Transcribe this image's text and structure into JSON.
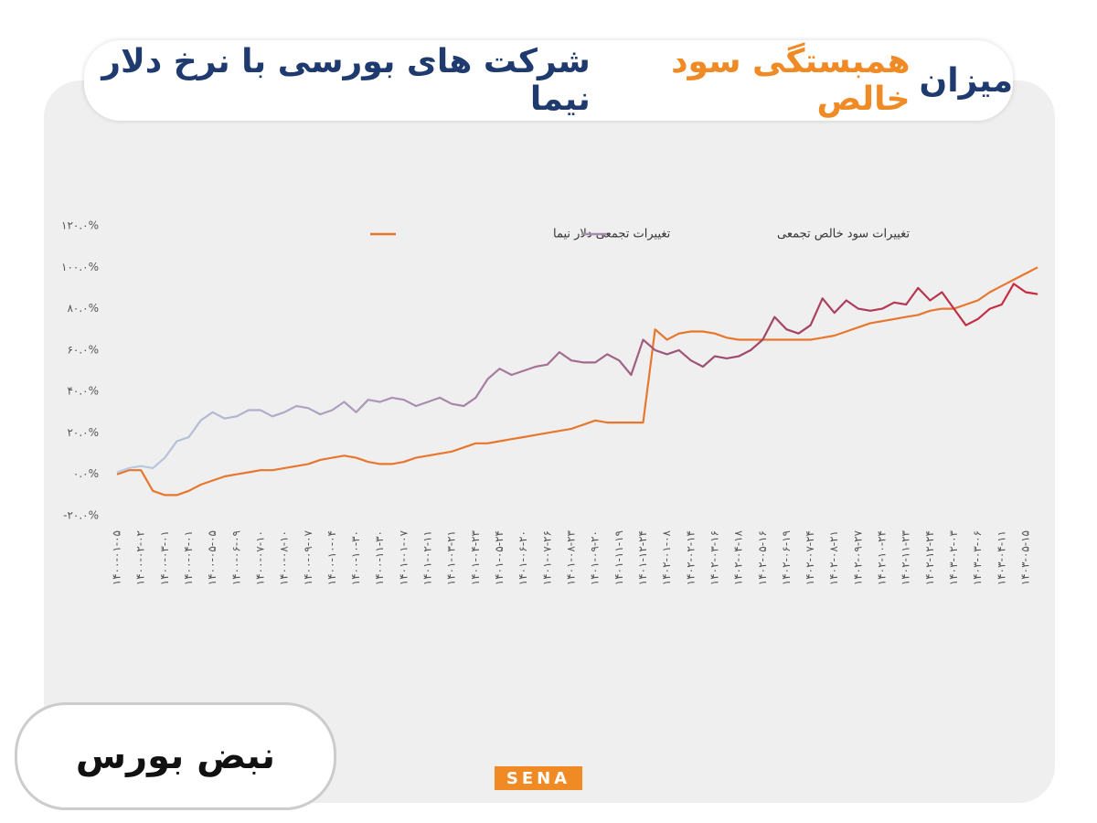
{
  "header": {
    "title_parts": [
      "میزان",
      "همبستگی سود خالص",
      "شرکت های بورسی با نرخ دلار نیما"
    ]
  },
  "chart_data": {
    "type": "line",
    "categories": [
      "۱۴۰۰-۰۱-۰۵",
      null,
      "۱۴۰۰-۰۲-۰۲",
      null,
      "۱۴۰۰-۰۳-۰۱",
      null,
      "۱۴۰۰-۰۴-۰۱",
      null,
      "۱۴۰۰-۰۵-۰۵",
      null,
      "۱۴۰۰-۰۶-۰۹",
      null,
      "۱۴۰۰-۰۷-۱۰",
      null,
      "۱۴۰۰-۰۸-۱۰",
      null,
      "۱۴۰۰-۰۹-۰۷",
      null,
      "۱۴۰۰-۱۰-۰۴",
      null,
      "۱۴۰۰-۱۰-۳۰",
      null,
      "۱۴۰۰-۱۱-۳۰",
      null,
      "۱۴۰۱-۰۱-۰۷",
      null,
      "۱۴۰۱-۰۲-۱۱",
      null,
      "۱۴۰۱-۰۳-۲۱",
      null,
      "۱۴۰۱-۰۴-۲۳",
      null,
      "۱۴۰۱-۰۵-۲۴",
      null,
      "۱۴۰۱-۰۶-۲۰",
      null,
      "۱۴۰۱-۰۷-۲۶",
      null,
      "۱۴۰۱-۰۸-۲۳",
      null,
      "۱۴۰۱-۰۹-۲۰",
      null,
      "۱۴۰۱-۱۱-۱۹",
      null,
      "۱۴۰۱-۱۲-۲۴",
      null,
      "۱۴۰۲-۰۱-۰۸",
      null,
      "۱۴۰۲-۰۲-۱۴",
      null,
      "۱۴۰۲-۰۳-۱۶",
      null,
      "۱۴۰۲-۰۴-۱۸",
      null,
      "۱۴۰۲-۰۵-۱۶",
      null,
      "۱۴۰۲-۰۶-۱۹",
      null,
      "۱۴۰۲-۰۷-۲۴",
      null,
      "۱۴۰۲-۰۸-۲۱",
      null,
      "۱۴۰۲-۰۹-۲۷",
      null,
      "۱۴۰۲-۱۰-۲۴",
      null,
      "۱۴۰۲-۱۱-۲۳",
      null,
      "۱۴۰۲-۱۲-۲۴",
      null,
      "۱۴۰۳-۰۲-۰۳",
      null,
      "۱۴۰۳-۰۳-۰۶",
      null,
      "۱۴۰۳-۰۴-۱۱",
      null,
      "۱۴۰۳-۰۵-۱۵",
      null
    ],
    "series": [
      {
        "name": "تغییرات تجمعی دلار نیما",
        "color": "#e8772e",
        "values": [
          0,
          2,
          2,
          -8,
          -10,
          -10,
          -8,
          -5,
          -3,
          -1,
          0,
          1,
          2,
          2,
          3,
          4,
          5,
          7,
          8,
          9,
          8,
          6,
          5,
          5,
          6,
          8,
          9,
          10,
          11,
          13,
          15,
          15,
          16,
          17,
          18,
          19,
          20,
          21,
          22,
          24,
          26,
          25,
          25,
          25,
          25,
          70,
          65,
          68,
          69,
          69,
          68,
          66,
          65,
          65,
          65,
          65,
          65,
          65,
          65,
          66,
          67,
          69,
          71,
          73,
          74,
          75,
          76,
          77,
          79,
          80,
          80,
          82,
          84,
          88,
          91,
          94,
          97,
          100
        ]
      },
      {
        "name": "تغییرات سود خالص تجمعی",
        "color": [
          "#b8cde3",
          "#a98bb0",
          "#9c4a6e",
          "#c9283c"
        ],
        "values": [
          1,
          3,
          4,
          3,
          8,
          16,
          18,
          26,
          30,
          27,
          28,
          31,
          31,
          28,
          30,
          33,
          32,
          29,
          31,
          35,
          30,
          36,
          35,
          37,
          36,
          33,
          35,
          37,
          34,
          33,
          37,
          46,
          51,
          48,
          50,
          52,
          53,
          59,
          55,
          54,
          54,
          58,
          55,
          48,
          65,
          60,
          58,
          60,
          55,
          52,
          57,
          56,
          57,
          60,
          65,
          76,
          70,
          68,
          72,
          85,
          78,
          84,
          80,
          79,
          80,
          83,
          82,
          90,
          84,
          88,
          80,
          72,
          75,
          80,
          82,
          92,
          88,
          87
        ]
      }
    ],
    "ylim": [
      -20,
      120
    ],
    "yticks": [
      {
        "value": -20,
        "label": "-۲۰.۰%"
      },
      {
        "value": 0,
        "label": "۰.۰%"
      },
      {
        "value": 20,
        "label": "۲۰.۰%"
      },
      {
        "value": 40,
        "label": "۴۰.۰%"
      },
      {
        "value": 60,
        "label": "۶۰.۰%"
      },
      {
        "value": 80,
        "label": "۸۰.۰%"
      },
      {
        "value": 100,
        "label": "۱۰۰.۰%"
      },
      {
        "value": 120,
        "label": "۱۲۰.۰%"
      }
    ]
  },
  "footer": {
    "logo": "نبض بورس",
    "brand": "SENA"
  }
}
